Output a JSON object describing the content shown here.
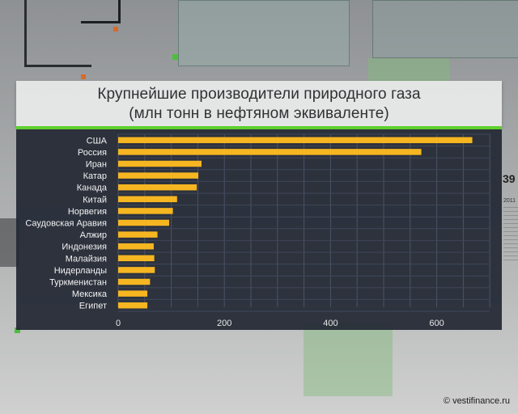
{
  "title": {
    "line1": "Крупнейшие производители природного газа",
    "line2": "(млн тонн в нефтяном эквиваленте)"
  },
  "chart_data": {
    "type": "bar",
    "orientation": "horizontal",
    "title": "Крупнейшие производители природного газа (млн тонн в нефтяном эквиваленте)",
    "categories": [
      "США",
      "Россия",
      "Иран",
      "Катар",
      "Канада",
      "Китай",
      "Норвегия",
      "Саудовская Аравия",
      "Алжир",
      "Индонезия",
      "Малайзия",
      "Нидерланды",
      "Туркменистан",
      "Мексика",
      "Египет"
    ],
    "values": [
      667,
      571,
      157,
      151,
      148,
      111,
      103,
      96,
      74,
      67,
      68,
      69,
      60,
      55,
      55
    ],
    "xlim": [
      0,
      700
    ],
    "xticks": [
      0,
      200,
      400,
      600
    ],
    "grid": true,
    "bar_color": "#f6b621"
  },
  "side_panel": {
    "number": "39",
    "year": "2011"
  },
  "watermark": "© vestifinance.ru"
}
